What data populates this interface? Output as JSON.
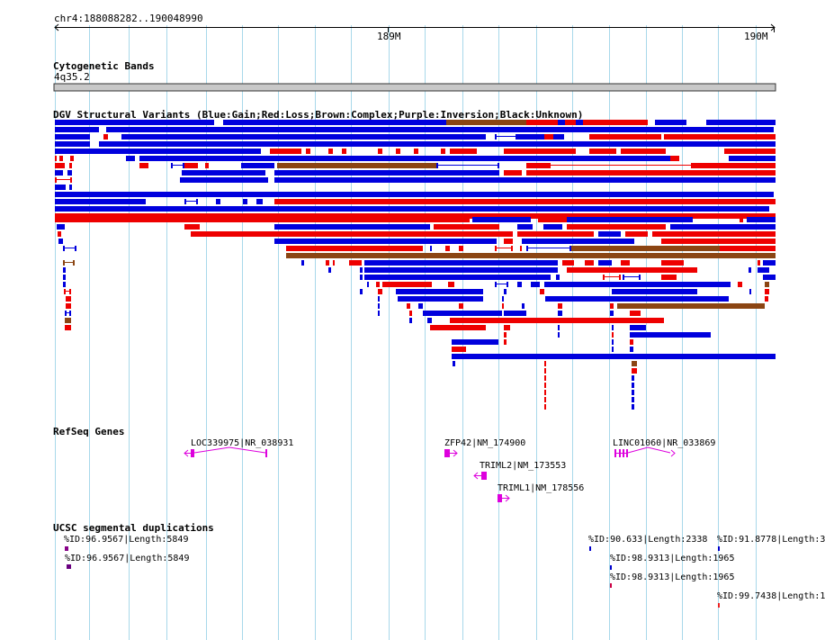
{
  "ruler": {
    "range_label": "chr4:188088282..190048990",
    "ticks": [
      {
        "label": "189M",
        "pos": 189000000
      },
      {
        "label": "190M",
        "pos": 190000000
      }
    ],
    "start": 188088282,
    "end": 190048990
  },
  "tracks": {
    "cytoband": {
      "title": "Cytogenetic Bands",
      "band": "4q35.2"
    },
    "dgv": {
      "title": "DGV Structural Variants (Blue:Gain;Red:Loss;Brown:Complex;Purple:Inversion;Black:Unknown)"
    },
    "refseq": {
      "title": "RefSeq Genes",
      "genes": [
        {
          "label": "LOC339975|NR_038931",
          "strand": "-"
        },
        {
          "label": "ZFP42|NM_174900",
          "strand": "+"
        },
        {
          "label": "TRIML2|NM_173553",
          "strand": "-"
        },
        {
          "label": "TRIML1|NM_178556",
          "strand": "+"
        },
        {
          "label": "LINC01060|NR_033869",
          "strand": "+"
        }
      ]
    },
    "segdup": {
      "title": "UCSC segmental duplications",
      "items": [
        "%ID:96.9567|Length:5849",
        "%ID:96.9567|Length:5849",
        "%ID:90.633|Length:2338",
        "%ID:98.9313|Length:1965",
        "%ID:98.9313|Length:1965",
        "%ID:91.8778|Length:3",
        "%ID:99.7438|Length:1"
      ]
    }
  },
  "colors": {
    "gain": "#0000dd",
    "loss": "#ee0000",
    "complex": "#8b4513",
    "inversion": "#880088",
    "unknown": "#000000",
    "gene": "#dd00dd",
    "grid": "#a8d8ea"
  }
}
